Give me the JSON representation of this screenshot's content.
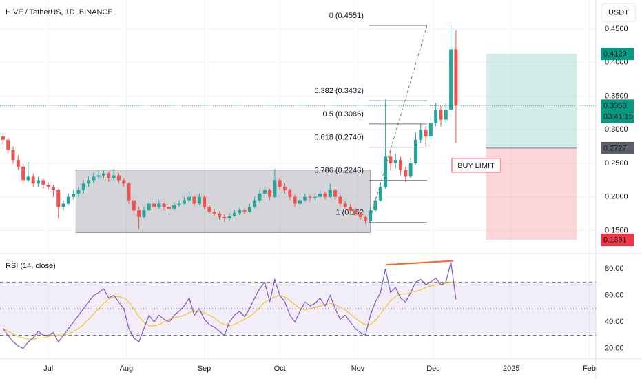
{
  "chart_data": [
    {
      "type": "candlestick",
      "title": "HIVE / TetherUS, 1D, BINANCE",
      "currency": "USDT",
      "up_color": "#26a69a",
      "down_color": "#ef5350",
      "grid": true,
      "xlim": [
        -19.2,
        217.6
      ],
      "xticks": [
        {
          "value": 0,
          "label": "Jul"
        },
        {
          "value": 31,
          "label": "Aug"
        },
        {
          "value": 62,
          "label": "Sep"
        },
        {
          "value": 92,
          "label": "Oct"
        },
        {
          "value": 123,
          "label": "Nov"
        },
        {
          "value": 153,
          "label": "Dec"
        },
        {
          "value": 184,
          "label": "2025"
        },
        {
          "value": 215,
          "label": "Feb"
        }
      ],
      "ylim": [
        0.1187,
        0.4931
      ],
      "yticks": [
        {
          "value": 0.15,
          "label": "0.1500"
        },
        {
          "value": 0.2,
          "label": "0.2000"
        },
        {
          "value": 0.25,
          "label": "0.2500"
        },
        {
          "value": 0.3,
          "label": "0.3000"
        },
        {
          "value": 0.35,
          "label": "0.3500"
        },
        {
          "value": 0.4,
          "label": "0.4000"
        },
        {
          "value": 0.45,
          "label": "0.4500"
        }
      ],
      "x": [
        -18,
        -16,
        -14,
        -12,
        -10,
        -8,
        -6,
        -4,
        -2,
        0,
        2,
        4,
        6,
        8,
        10,
        12,
        14,
        16,
        18,
        20,
        22,
        24,
        26,
        28,
        30,
        32,
        34,
        36,
        38,
        40,
        42,
        44,
        46,
        48,
        50,
        52,
        54,
        56,
        58,
        60,
        62,
        64,
        66,
        68,
        70,
        72,
        74,
        76,
        78,
        80,
        82,
        84,
        86,
        88,
        90,
        92,
        94,
        96,
        98,
        100,
        102,
        104,
        106,
        108,
        110,
        112,
        114,
        116,
        118,
        120,
        122,
        124,
        126,
        128,
        130,
        132,
        134,
        136,
        138,
        140,
        142,
        144,
        146,
        148,
        150,
        152,
        154,
        156,
        158,
        160,
        162
      ],
      "candles": [
        [
          0.29,
          0.295,
          0.278,
          0.285
        ],
        [
          0.285,
          0.288,
          0.265,
          0.27
        ],
        [
          0.27,
          0.275,
          0.25,
          0.255
        ],
        [
          0.255,
          0.262,
          0.24,
          0.245
        ],
        [
          0.245,
          0.25,
          0.218,
          0.225
        ],
        [
          0.225,
          0.252,
          0.222,
          0.23
        ],
        [
          0.23,
          0.235,
          0.215,
          0.22
        ],
        [
          0.22,
          0.23,
          0.215,
          0.225
        ],
        [
          0.225,
          0.228,
          0.212,
          0.218
        ],
        [
          0.218,
          0.222,
          0.21,
          0.215
        ],
        [
          0.215,
          0.218,
          0.2,
          0.21
        ],
        [
          0.21,
          0.212,
          0.168,
          0.185
        ],
        [
          0.185,
          0.195,
          0.18,
          0.19
        ],
        [
          0.19,
          0.205,
          0.188,
          0.2
        ],
        [
          0.2,
          0.21,
          0.196,
          0.205
        ],
        [
          0.205,
          0.215,
          0.2,
          0.21
        ],
        [
          0.21,
          0.225,
          0.205,
          0.22
        ],
        [
          0.22,
          0.23,
          0.215,
          0.225
        ],
        [
          0.225,
          0.236,
          0.22,
          0.23
        ],
        [
          0.23,
          0.24,
          0.226,
          0.232
        ],
        [
          0.232,
          0.24,
          0.228,
          0.235
        ],
        [
          0.235,
          0.238,
          0.222,
          0.228
        ],
        [
          0.228,
          0.242,
          0.225,
          0.232
        ],
        [
          0.232,
          0.235,
          0.22,
          0.225
        ],
        [
          0.225,
          0.228,
          0.215,
          0.22
        ],
        [
          0.22,
          0.222,
          0.19,
          0.195
        ],
        [
          0.195,
          0.198,
          0.175,
          0.18
        ],
        [
          0.18,
          0.185,
          0.152,
          0.17
        ],
        [
          0.17,
          0.185,
          0.168,
          0.18
        ],
        [
          0.18,
          0.195,
          0.178,
          0.19
        ],
        [
          0.19,
          0.193,
          0.18,
          0.185
        ],
        [
          0.185,
          0.195,
          0.182,
          0.19
        ],
        [
          0.19,
          0.192,
          0.18,
          0.185
        ],
        [
          0.185,
          0.188,
          0.178,
          0.182
        ],
        [
          0.182,
          0.192,
          0.18,
          0.188
        ],
        [
          0.188,
          0.195,
          0.185,
          0.19
        ],
        [
          0.19,
          0.2,
          0.188,
          0.195
        ],
        [
          0.195,
          0.208,
          0.192,
          0.2
        ],
        [
          0.2,
          0.202,
          0.186,
          0.19
        ],
        [
          0.19,
          0.205,
          0.188,
          0.2
        ],
        [
          0.2,
          0.202,
          0.182,
          0.185
        ],
        [
          0.185,
          0.188,
          0.175,
          0.178
        ],
        [
          0.178,
          0.182,
          0.172,
          0.175
        ],
        [
          0.175,
          0.178,
          0.166,
          0.17
        ],
        [
          0.17,
          0.174,
          0.163,
          0.168
        ],
        [
          0.168,
          0.176,
          0.165,
          0.172
        ],
        [
          0.172,
          0.18,
          0.17,
          0.176
        ],
        [
          0.176,
          0.184,
          0.173,
          0.18
        ],
        [
          0.18,
          0.183,
          0.174,
          0.178
        ],
        [
          0.178,
          0.19,
          0.176,
          0.185
        ],
        [
          0.185,
          0.2,
          0.183,
          0.195
        ],
        [
          0.195,
          0.21,
          0.192,
          0.205
        ],
        [
          0.205,
          0.215,
          0.2,
          0.21
        ],
        [
          0.21,
          0.212,
          0.195,
          0.2
        ],
        [
          0.2,
          0.242,
          0.198,
          0.225
        ],
        [
          0.225,
          0.228,
          0.21,
          0.215
        ],
        [
          0.215,
          0.22,
          0.205,
          0.21
        ],
        [
          0.21,
          0.212,
          0.195,
          0.2
        ],
        [
          0.2,
          0.203,
          0.185,
          0.19
        ],
        [
          0.19,
          0.2,
          0.188,
          0.195
        ],
        [
          0.195,
          0.205,
          0.193,
          0.2
        ],
        [
          0.2,
          0.203,
          0.193,
          0.198
        ],
        [
          0.198,
          0.205,
          0.195,
          0.2
        ],
        [
          0.2,
          0.21,
          0.198,
          0.205
        ],
        [
          0.205,
          0.208,
          0.196,
          0.2
        ],
        [
          0.2,
          0.22,
          0.198,
          0.21
        ],
        [
          0.21,
          0.212,
          0.196,
          0.2
        ],
        [
          0.2,
          0.203,
          0.186,
          0.19
        ],
        [
          0.19,
          0.194,
          0.182,
          0.185
        ],
        [
          0.185,
          0.19,
          0.176,
          0.18
        ],
        [
          0.18,
          0.184,
          0.172,
          0.175
        ],
        [
          0.175,
          0.178,
          0.166,
          0.17
        ],
        [
          0.17,
          0.172,
          0.16,
          0.165
        ],
        [
          0.165,
          0.185,
          0.163,
          0.18
        ],
        [
          0.18,
          0.2,
          0.178,
          0.195
        ],
        [
          0.195,
          0.222,
          0.193,
          0.215
        ],
        [
          0.215,
          0.345,
          0.212,
          0.26
        ],
        [
          0.26,
          0.27,
          0.24,
          0.25
        ],
        [
          0.25,
          0.265,
          0.242,
          0.255
        ],
        [
          0.255,
          0.26,
          0.232,
          0.24
        ],
        [
          0.24,
          0.245,
          0.222,
          0.23
        ],
        [
          0.23,
          0.258,
          0.228,
          0.25
        ],
        [
          0.25,
          0.295,
          0.248,
          0.285
        ],
        [
          0.285,
          0.31,
          0.28,
          0.3
        ],
        [
          0.3,
          0.305,
          0.275,
          0.29
        ],
        [
          0.29,
          0.318,
          0.285,
          0.31
        ],
        [
          0.31,
          0.34,
          0.305,
          0.33
        ],
        [
          0.33,
          0.335,
          0.305,
          0.315
        ],
        [
          0.315,
          0.34,
          0.31,
          0.33
        ],
        [
          0.33,
          0.455,
          0.325,
          0.42
        ],
        [
          0.42,
          0.448,
          0.28,
          0.3358
        ]
      ],
      "current_price": 0.3358,
      "countdown": "03:41:15",
      "fib_x": [
        127.5,
        150.5
      ],
      "fib_levels": [
        {
          "label": "0 (0.4551)",
          "value": 0.4551
        },
        {
          "label": "0.382 (0.3432)",
          "value": 0.3432
        },
        {
          "label": "0.5 (0.3086)",
          "value": 0.3086
        },
        {
          "label": "0.618 (0.2740)",
          "value": 0.274
        },
        {
          "label": "0.786 (0.2248)",
          "value": 0.2248
        },
        {
          "label": "1 (0.162",
          "value": 0.162
        }
      ],
      "range_box": {
        "x": [
          11,
          128
        ],
        "y": [
          0.147,
          0.24
        ]
      },
      "position": {
        "x": [
          174,
          210
        ],
        "target": 0.4129,
        "entry": 0.2727,
        "stop": 0.1361
      },
      "annotation": "BUY LIMIT"
    },
    {
      "type": "line",
      "title": "RSI (14, close)",
      "xlim": [
        -19.2,
        217.6
      ],
      "ylim": [
        12.6,
        90.4
      ],
      "yticks": [
        {
          "value": 20,
          "label": "20.00"
        },
        {
          "value": 40,
          "label": "40.00"
        },
        {
          "value": 60,
          "label": "60.00"
        },
        {
          "value": 80,
          "label": "80.00"
        }
      ],
      "bands": [
        30,
        50,
        70
      ],
      "x": [
        -18,
        -16,
        -14,
        -12,
        -10,
        -8,
        -6,
        -4,
        -2,
        0,
        2,
        4,
        6,
        8,
        10,
        12,
        14,
        16,
        18,
        20,
        22,
        24,
        26,
        28,
        30,
        32,
        34,
        36,
        38,
        40,
        42,
        44,
        46,
        48,
        50,
        52,
        54,
        56,
        58,
        60,
        62,
        64,
        66,
        68,
        70,
        72,
        74,
        76,
        78,
        80,
        82,
        84,
        86,
        88,
        90,
        92,
        94,
        96,
        98,
        100,
        102,
        104,
        106,
        108,
        110,
        112,
        114,
        116,
        118,
        120,
        122,
        124,
        126,
        128,
        130,
        132,
        134,
        136,
        138,
        140,
        142,
        144,
        146,
        148,
        150,
        152,
        154,
        156,
        158,
        160,
        162
      ],
      "series": [
        {
          "color": "#7e57c2",
          "values": [
            35,
            30,
            25,
            22,
            20,
            25,
            28,
            33,
            30,
            30,
            32,
            25,
            30,
            35,
            40,
            45,
            50,
            55,
            60,
            62,
            65,
            58,
            60,
            55,
            50,
            35,
            28,
            25,
            35,
            45,
            40,
            45,
            42,
            40,
            45,
            48,
            52,
            58,
            45,
            50,
            42,
            38,
            36,
            33,
            30,
            40,
            45,
            48,
            44,
            50,
            58,
            65,
            70,
            55,
            72,
            60,
            55,
            45,
            40,
            48,
            55,
            52,
            54,
            58,
            52,
            60,
            50,
            42,
            45,
            40,
            35,
            32,
            30,
            45,
            55,
            62,
            80,
            62,
            66,
            58,
            55,
            62,
            70,
            72,
            68,
            70,
            73,
            68,
            70,
            85,
            57
          ]
        },
        {
          "color": "#f7c325",
          "values": [
            35,
            33,
            31,
            29,
            28,
            27,
            27,
            28,
            28,
            29,
            30,
            30,
            30,
            31,
            33,
            35,
            38,
            42,
            46,
            50,
            54,
            57,
            59,
            59,
            58,
            55,
            50,
            44,
            40,
            37,
            37,
            38,
            40,
            42,
            43,
            44,
            45,
            47,
            48,
            48,
            47,
            45,
            43,
            40,
            38,
            37,
            38,
            40,
            42,
            44,
            47,
            51,
            55,
            57,
            59,
            60,
            59,
            56,
            53,
            50,
            49,
            50,
            51,
            52,
            53,
            54,
            53,
            51,
            49,
            46,
            43,
            40,
            38,
            38,
            41,
            46,
            51,
            56,
            59,
            61,
            61,
            62,
            63,
            64,
            66,
            67,
            68,
            68,
            69,
            70,
            70
          ]
        }
      ],
      "divergence": {
        "x": [
          134,
          161
        ],
        "y": [
          83,
          86
        ],
        "color": "#f06a28"
      }
    }
  ]
}
